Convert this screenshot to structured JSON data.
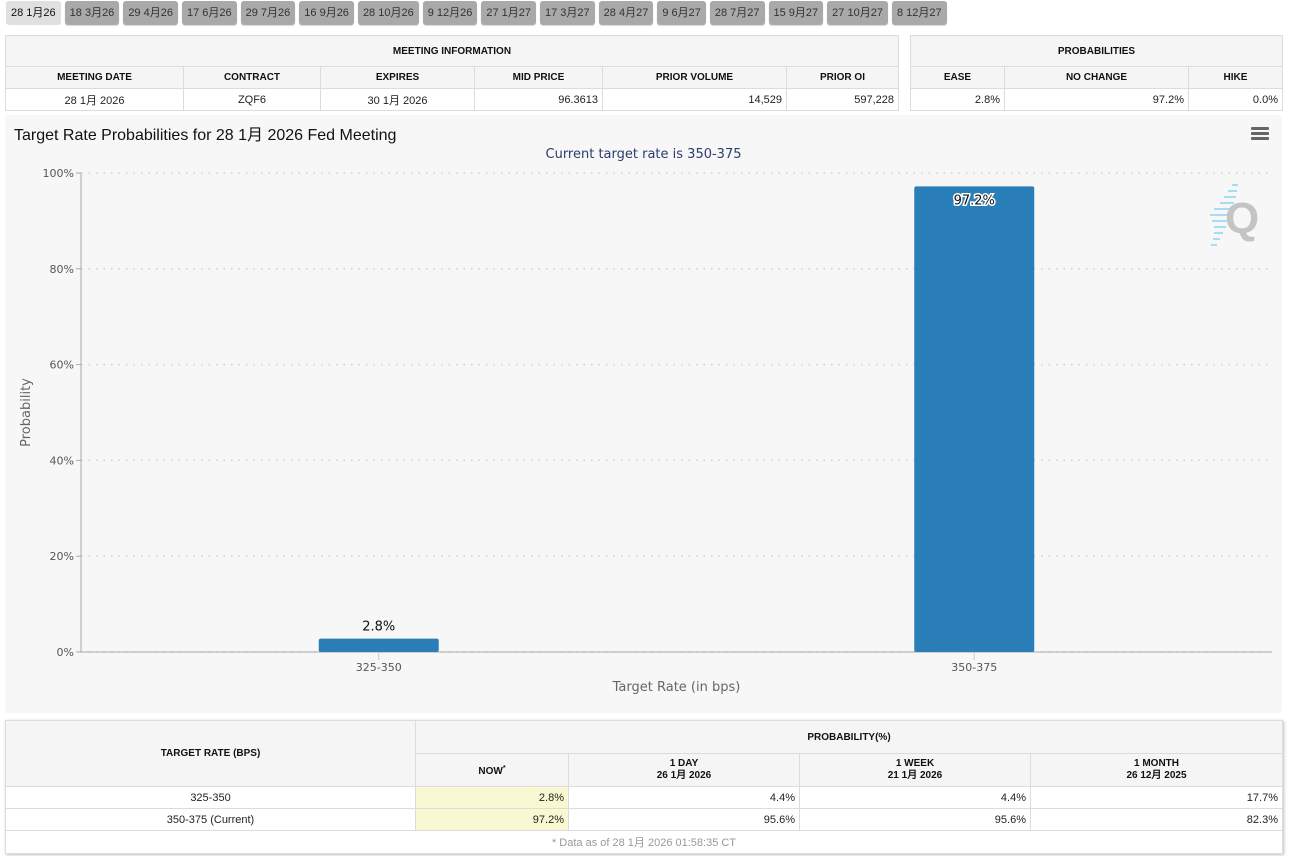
{
  "tabs": [
    {
      "label": "28 1月26",
      "active": true
    },
    {
      "label": "18 3月26"
    },
    {
      "label": "29 4月26"
    },
    {
      "label": "17 6月26"
    },
    {
      "label": "29 7月26"
    },
    {
      "label": "16 9月26"
    },
    {
      "label": "28 10月26"
    },
    {
      "label": "9 12月26"
    },
    {
      "label": "27 1月27"
    },
    {
      "label": "17 3月27"
    },
    {
      "label": "28 4月27"
    },
    {
      "label": "9 6月27"
    },
    {
      "label": "28 7月27"
    },
    {
      "label": "15 9月27"
    },
    {
      "label": "27 10月27"
    },
    {
      "label": "8 12月27"
    }
  ],
  "meeting_info": {
    "group_header": "MEETING INFORMATION",
    "columns": [
      "MEETING DATE",
      "CONTRACT",
      "EXPIRES",
      "MID PRICE",
      "PRIOR VOLUME",
      "PRIOR OI"
    ],
    "row": [
      "28 1月 2026",
      "ZQF6",
      "30 1月 2026",
      "96.3613",
      "14,529",
      "597,228"
    ]
  },
  "probabilities": {
    "group_header": "PROBABILITIES",
    "columns": [
      "EASE",
      "NO CHANGE",
      "HIKE"
    ],
    "row": [
      "2.8%",
      "97.2%",
      "0.0%"
    ]
  },
  "chart": {
    "menu_icon": "hamburger-menu-icon",
    "watermark_icon": "quikstrike-q-logo-icon",
    "bar_color": "#2a7fb8"
  },
  "chart_data": {
    "type": "bar",
    "title": "Target Rate Probabilities for 28 1月 2026 Fed Meeting",
    "subtitle": "Current target rate is 350-375",
    "xlabel": "Target Rate (in bps)",
    "ylabel": "Probability",
    "categories": [
      "325-350",
      "350-375"
    ],
    "values": [
      2.8,
      97.2
    ],
    "data_labels": [
      "2.8%",
      "97.2%"
    ],
    "ylim": [
      0,
      100
    ],
    "yticks": [
      0,
      20,
      40,
      60,
      80,
      100
    ],
    "ytick_labels": [
      "0%",
      "20%",
      "40%",
      "60%",
      "80%",
      "100%"
    ],
    "grid": true,
    "legend": "none"
  },
  "history": {
    "target_rate_header": "TARGET RATE (BPS)",
    "probability_header": "PROBABILITY(%)",
    "columns": [
      {
        "label": "NOW",
        "marker": "*",
        "date": ""
      },
      {
        "label": "1 DAY",
        "date": "26 1月 2026"
      },
      {
        "label": "1 WEEK",
        "date": "21 1月 2026"
      },
      {
        "label": "1 MONTH",
        "date": "26 12月 2025"
      }
    ],
    "rows": [
      {
        "rate": "325-350",
        "values": [
          "2.8%",
          "4.4%",
          "4.4%",
          "17.7%"
        ]
      },
      {
        "rate": "350-375 (Current)",
        "values": [
          "97.2%",
          "95.6%",
          "95.6%",
          "82.3%"
        ]
      }
    ],
    "footnote": "* Data as of 28 1月 2026 01:58:35 CT"
  }
}
